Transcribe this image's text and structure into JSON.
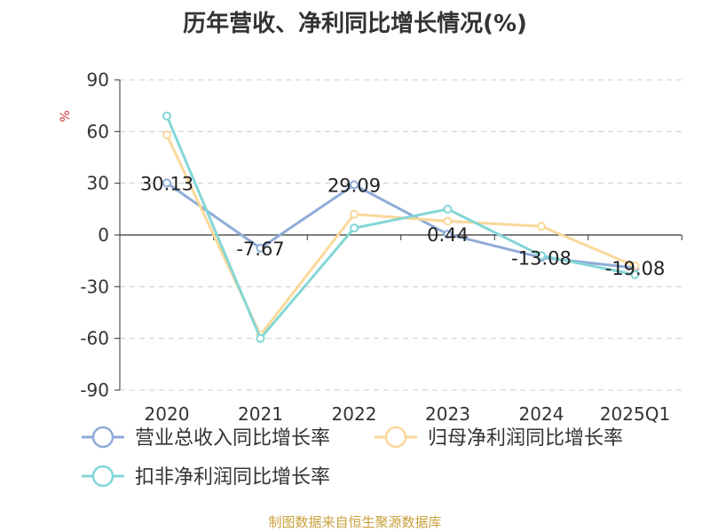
{
  "title": "历年营收、净利同比增长情况(%)",
  "source": "制图数据来自恒生聚源数据库",
  "chart_data": {
    "type": "line",
    "title": "历年营收、净利同比增长情况(%)",
    "ylabel": "%",
    "xlabel": "",
    "categories": [
      "2020",
      "2021",
      "2022",
      "2023",
      "2024",
      "2025Q1"
    ],
    "ylim": [
      -90,
      90
    ],
    "yticks": [
      90,
      60,
      30,
      0,
      -30,
      -60,
      -90
    ],
    "grid": true,
    "legend_position": "bottom-left",
    "series": [
      {
        "name": "营业总收入同比增长率",
        "color": "#8fabd8",
        "values": [
          30.13,
          -7.67,
          29.09,
          0.44,
          -13.08,
          -19.08
        ],
        "labels": [
          "30.13",
          "-7.67",
          "29.09",
          "0.44",
          "-13.08",
          "-19.08"
        ]
      },
      {
        "name": "归母净利润同比增长率",
        "color": "#fad89a",
        "values": [
          58,
          -58,
          12,
          8,
          5,
          -18
        ]
      },
      {
        "name": "扣非净利润同比增长率",
        "color": "#84d6d6",
        "values": [
          69,
          -60,
          4,
          15,
          -12,
          -23
        ]
      }
    ]
  }
}
